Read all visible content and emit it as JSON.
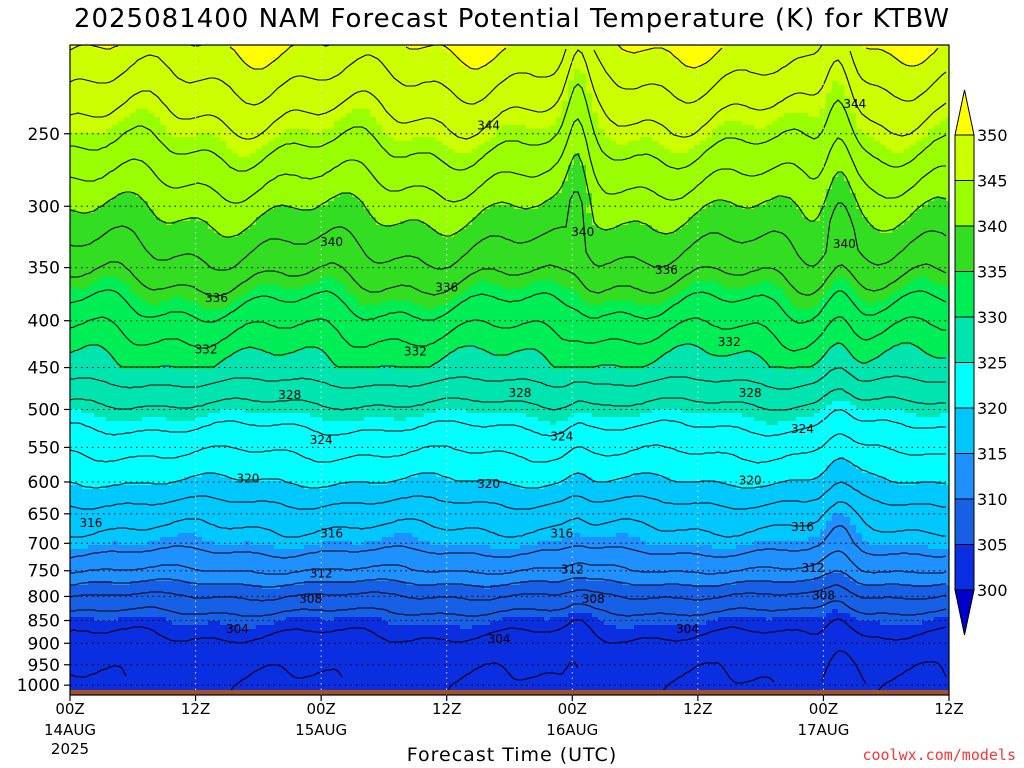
{
  "chart_data": {
    "type": "heatmap",
    "title": "2025081400 NAM Forecast Potential Temperature (K) for KTBW",
    "xlabel": "Forecast Time (UTC)",
    "ylabel": "",
    "x_ticks": [
      {
        "hours": 0,
        "top": "00Z",
        "mid": "14AUG",
        "bot": "2025"
      },
      {
        "hours": 12,
        "top": "12Z",
        "mid": "",
        "bot": ""
      },
      {
        "hours": 24,
        "top": "00Z",
        "mid": "15AUG",
        "bot": ""
      },
      {
        "hours": 36,
        "top": "12Z",
        "mid": "",
        "bot": ""
      },
      {
        "hours": 48,
        "top": "00Z",
        "mid": "16AUG",
        "bot": ""
      },
      {
        "hours": 60,
        "top": "12Z",
        "mid": "",
        "bot": ""
      },
      {
        "hours": 72,
        "top": "00Z",
        "mid": "17AUG",
        "bot": ""
      },
      {
        "hours": 84,
        "top": "12Z",
        "mid": "",
        "bot": ""
      }
    ],
    "xlim": [
      0,
      84
    ],
    "y_ticks": [
      250,
      300,
      350,
      400,
      450,
      500,
      550,
      600,
      650,
      700,
      750,
      800,
      850,
      900,
      950,
      1000
    ],
    "ylim": [
      1025,
      200
    ],
    "y_scale": "log",
    "grid": true,
    "colorbar": {
      "levels": [
        300,
        305,
        310,
        315,
        320,
        325,
        330,
        335,
        340,
        345,
        350
      ],
      "labels": [
        "300",
        "305",
        "310",
        "315",
        "320",
        "325",
        "330",
        "335",
        "340",
        "345",
        "350"
      ],
      "colors": [
        "#0000cc",
        "#0a2ee0",
        "#1760e6",
        "#1e90ff",
        "#00c8ff",
        "#00ffff",
        "#00e5b0",
        "#00ee55",
        "#33dd22",
        "#99ff00",
        "#ccff00",
        "#ffff00"
      ]
    },
    "theta_profile": [
      {
        "p": 1000,
        "theta": 302
      },
      {
        "p": 950,
        "theta": 302.5
      },
      {
        "p": 900,
        "theta": 303.5
      },
      {
        "p": 850,
        "theta": 305
      },
      {
        "p": 800,
        "theta": 308
      },
      {
        "p": 750,
        "theta": 312
      },
      {
        "p": 700,
        "theta": 315
      },
      {
        "p": 650,
        "theta": 317
      },
      {
        "p": 600,
        "theta": 320
      },
      {
        "p": 550,
        "theta": 322.5
      },
      {
        "p": 500,
        "theta": 325.5
      },
      {
        "p": 450,
        "theta": 329.5
      },
      {
        "p": 400,
        "theta": 333
      },
      {
        "p": 350,
        "theta": 337
      },
      {
        "p": 300,
        "theta": 340.5
      },
      {
        "p": 250,
        "theta": 345
      },
      {
        "p": 200,
        "theta": 350
      }
    ],
    "contour_labels": [
      {
        "text": "344",
        "hours": 40,
        "p": 245
      },
      {
        "text": "344",
        "hours": 75,
        "p": 232
      },
      {
        "text": "340",
        "hours": 25,
        "p": 328
      },
      {
        "text": "340",
        "hours": 49,
        "p": 320
      },
      {
        "text": "340",
        "hours": 74,
        "p": 330
      },
      {
        "text": "336",
        "hours": 14,
        "p": 378
      },
      {
        "text": "336",
        "hours": 36,
        "p": 368
      },
      {
        "text": "336",
        "hours": 57,
        "p": 352
      },
      {
        "text": "332",
        "hours": 13,
        "p": 430
      },
      {
        "text": "332",
        "hours": 33,
        "p": 432
      },
      {
        "text": "332",
        "hours": 63,
        "p": 422
      },
      {
        "text": "328",
        "hours": 21,
        "p": 482
      },
      {
        "text": "328",
        "hours": 43,
        "p": 480
      },
      {
        "text": "328",
        "hours": 65,
        "p": 480
      },
      {
        "text": "324",
        "hours": 24,
        "p": 540
      },
      {
        "text": "324",
        "hours": 47,
        "p": 535
      },
      {
        "text": "324",
        "hours": 70,
        "p": 525
      },
      {
        "text": "320",
        "hours": 17,
        "p": 595
      },
      {
        "text": "320",
        "hours": 40,
        "p": 603
      },
      {
        "text": "320",
        "hours": 65,
        "p": 598
      },
      {
        "text": "316",
        "hours": 2,
        "p": 665
      },
      {
        "text": "316",
        "hours": 25,
        "p": 683
      },
      {
        "text": "316",
        "hours": 47,
        "p": 683
      },
      {
        "text": "316",
        "hours": 70,
        "p": 672
      },
      {
        "text": "312",
        "hours": 24,
        "p": 755
      },
      {
        "text": "312",
        "hours": 48,
        "p": 748
      },
      {
        "text": "312",
        "hours": 71,
        "p": 745
      },
      {
        "text": "308",
        "hours": 23,
        "p": 805
      },
      {
        "text": "308",
        "hours": 50,
        "p": 805
      },
      {
        "text": "308",
        "hours": 72,
        "p": 798
      },
      {
        "text": "304",
        "hours": 16,
        "p": 868
      },
      {
        "text": "304",
        "hours": 41,
        "p": 890
      },
      {
        "text": "304",
        "hours": 59,
        "p": 868
      }
    ]
  },
  "credit": "coolwx.com/models"
}
